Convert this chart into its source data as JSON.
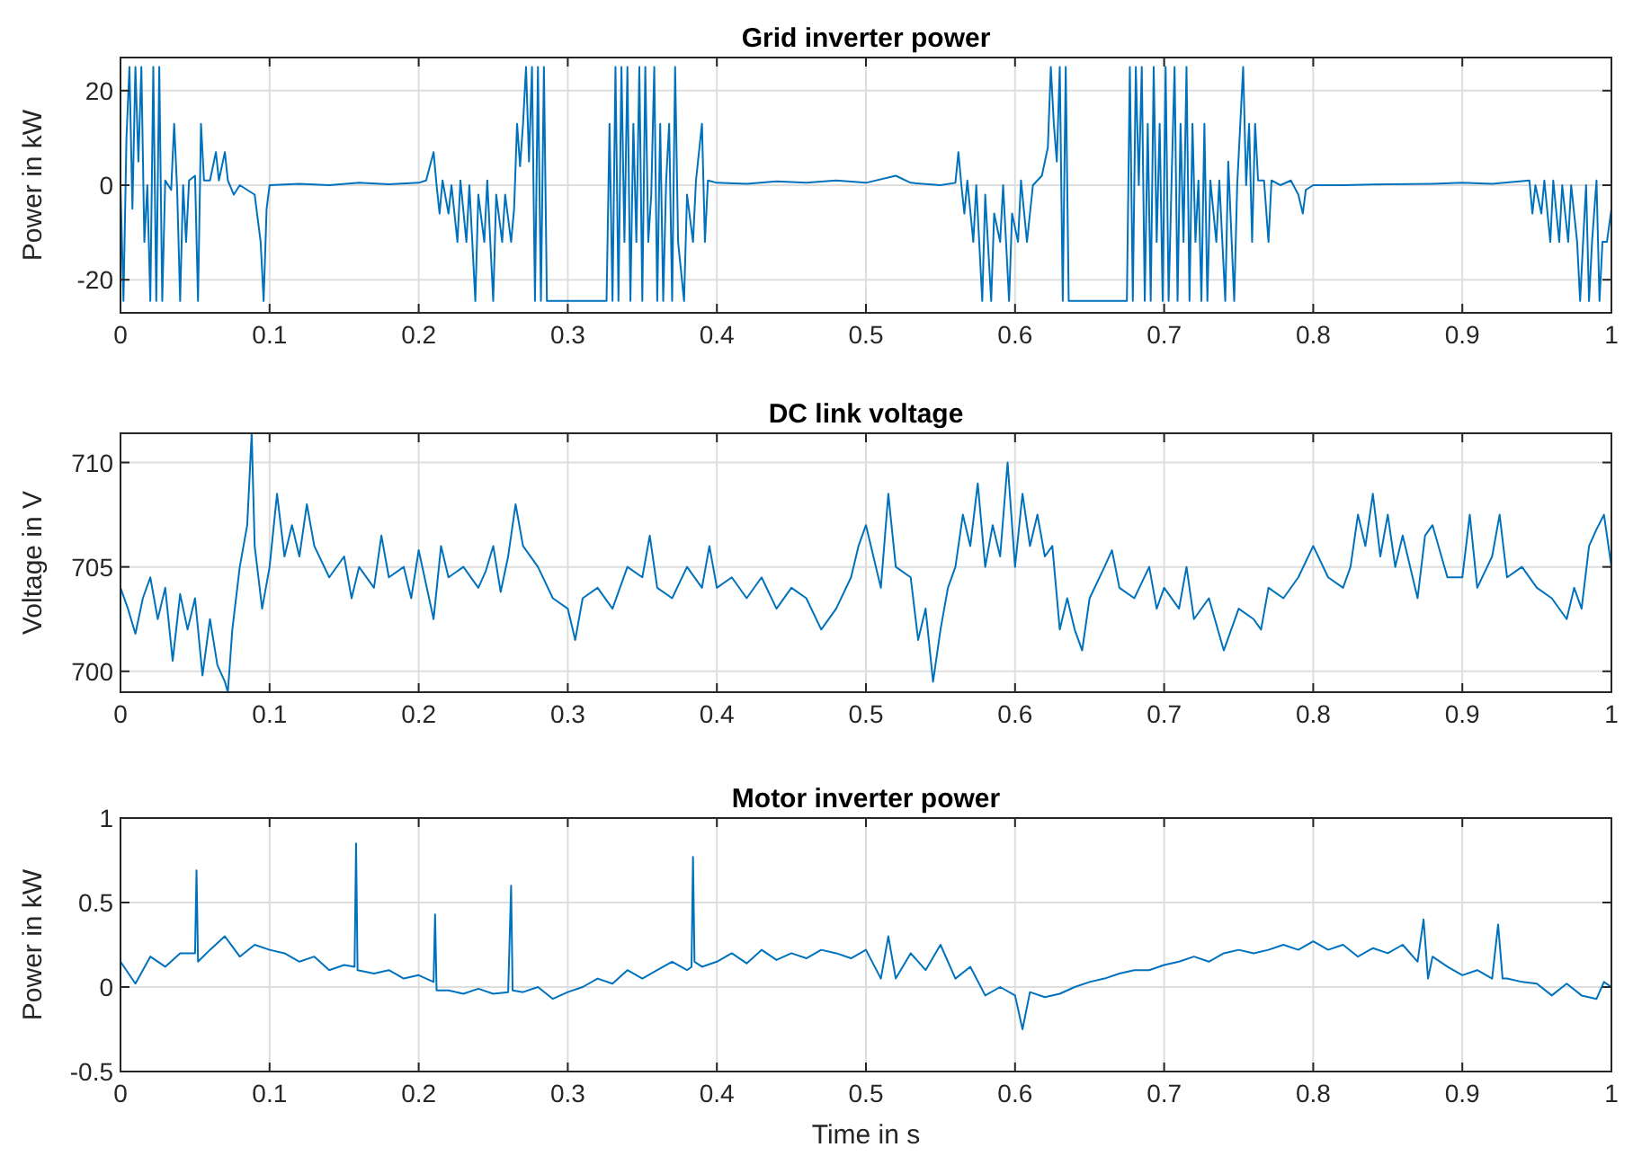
{
  "chart_data": [
    {
      "type": "line",
      "title": "Grid inverter power",
      "ylabel": "Power in kW",
      "xlim": [
        0,
        1
      ],
      "xticks": [
        0,
        0.1,
        0.2,
        0.3,
        0.4,
        0.5,
        0.6,
        0.7,
        0.8,
        0.9,
        1
      ],
      "ylim": [
        -27,
        27
      ],
      "yticks": [
        -20,
        0,
        20
      ],
      "grid": true,
      "series": [
        {
          "color": "#0072bd",
          "x": [
            0,
            0.002,
            0.004,
            0.006,
            0.008,
            0.01,
            0.012,
            0.014,
            0.016,
            0.018,
            0.02,
            0.022,
            0.024,
            0.026,
            0.028,
            0.03,
            0.034,
            0.036,
            0.038,
            0.04,
            0.042,
            0.044,
            0.046,
            0.05,
            0.052,
            0.054,
            0.056,
            0.06,
            0.064,
            0.066,
            0.07,
            0.072,
            0.076,
            0.08,
            0.085,
            0.09,
            0.094,
            0.096,
            0.098,
            0.1,
            0.12,
            0.14,
            0.16,
            0.18,
            0.2,
            0.205,
            0.21,
            0.212,
            0.214,
            0.216,
            0.22,
            0.222,
            0.226,
            0.228,
            0.232,
            0.234,
            0.238,
            0.24,
            0.244,
            0.246,
            0.25,
            0.252,
            0.256,
            0.258,
            0.262,
            0.264,
            0.266,
            0.268,
            0.27,
            0.272,
            0.274,
            0.276,
            0.278,
            0.28,
            0.282,
            0.284,
            0.286,
            0.3,
            0.32,
            0.326,
            0.328,
            0.33,
            0.332,
            0.334,
            0.336,
            0.338,
            0.34,
            0.342,
            0.344,
            0.346,
            0.348,
            0.35,
            0.352,
            0.354,
            0.356,
            0.358,
            0.36,
            0.362,
            0.364,
            0.366,
            0.368,
            0.37,
            0.372,
            0.374,
            0.378,
            0.38,
            0.384,
            0.386,
            0.39,
            0.392,
            0.394,
            0.4,
            0.42,
            0.44,
            0.46,
            0.48,
            0.5,
            0.52,
            0.53,
            0.55,
            0.56,
            0.562,
            0.564,
            0.566,
            0.568,
            0.572,
            0.574,
            0.578,
            0.58,
            0.584,
            0.586,
            0.59,
            0.592,
            0.596,
            0.598,
            0.602,
            0.604,
            0.608,
            0.612,
            0.618,
            0.622,
            0.624,
            0.626,
            0.628,
            0.63,
            0.632,
            0.634,
            0.636,
            0.64,
            0.66,
            0.675,
            0.677,
            0.679,
            0.681,
            0.683,
            0.685,
            0.687,
            0.689,
            0.691,
            0.693,
            0.695,
            0.697,
            0.699,
            0.701,
            0.703,
            0.705,
            0.707,
            0.709,
            0.711,
            0.713,
            0.715,
            0.717,
            0.719,
            0.721,
            0.723,
            0.725,
            0.727,
            0.729,
            0.731,
            0.735,
            0.737,
            0.741,
            0.743,
            0.747,
            0.749,
            0.753,
            0.755,
            0.757,
            0.759,
            0.761,
            0.763,
            0.767,
            0.77,
            0.772,
            0.778,
            0.785,
            0.79,
            0.793,
            0.795,
            0.8,
            0.82,
            0.85,
            0.88,
            0.9,
            0.92,
            0.945,
            0.947,
            0.949,
            0.953,
            0.955,
            0.959,
            0.961,
            0.965,
            0.967,
            0.971,
            0.973,
            0.977,
            0.979,
            0.981,
            0.983,
            0.985,
            0.987,
            0.99,
            0.992,
            0.994,
            0.997,
            1
          ],
          "values": [
            0,
            -24.5,
            10,
            25,
            -5,
            25,
            5,
            25,
            -12,
            0,
            -24.5,
            25,
            -24.5,
            25,
            -24.5,
            1,
            -1,
            13,
            -1,
            -24.5,
            0,
            -12,
            1,
            2,
            -24.5,
            13,
            1,
            1,
            7,
            1,
            7,
            1,
            -2,
            0,
            -1,
            -2,
            -12,
            -24.5,
            -5,
            0,
            0.3,
            0,
            0.5,
            0.2,
            0.5,
            1,
            7,
            0,
            -6,
            1,
            -6,
            0,
            -12,
            1,
            -12,
            0,
            -24.5,
            -2,
            -12,
            1,
            -24.5,
            -2,
            -12,
            -2,
            -12,
            -5,
            13,
            4,
            13,
            25,
            5,
            25,
            -24.5,
            25,
            -24.5,
            25,
            -24.5,
            -24.5,
            -24.5,
            -24.5,
            13,
            -24.5,
            25,
            -24.5,
            25,
            -12,
            25,
            -24.5,
            13,
            -12,
            25,
            -24.5,
            25,
            -12,
            -2,
            25,
            -24.5,
            13,
            -24.5,
            1,
            13,
            -24.5,
            25,
            -12,
            -24.5,
            -2,
            -12,
            1,
            13,
            -12,
            1,
            0.5,
            0.3,
            0.8,
            0.5,
            1,
            0.5,
            2,
            0.5,
            0,
            0.5,
            7,
            0,
            -6,
            1,
            -12,
            0,
            -24.5,
            -2,
            -24.5,
            -6,
            -12,
            0,
            -24.5,
            -6,
            -12,
            1,
            -12,
            0,
            2,
            8,
            25,
            13,
            5,
            25,
            -24.5,
            25,
            -24.5,
            -24.5,
            -24.5,
            -24.5,
            25,
            -24.5,
            25,
            0,
            25,
            -24.5,
            13,
            -24.5,
            25,
            -12,
            13,
            -24.5,
            25,
            -24.5,
            1,
            25,
            -24.5,
            13,
            -12,
            25,
            -24.5,
            13,
            -12,
            1,
            -24.5,
            13,
            -24.5,
            1,
            -12,
            1,
            -24.5,
            5,
            -24.5,
            0,
            25,
            0,
            13,
            -12,
            13,
            1,
            1,
            -12,
            1,
            0,
            1,
            -2,
            -6,
            -1,
            0,
            0,
            0.2,
            0.3,
            0.5,
            0.3,
            1,
            -6,
            0,
            -6,
            1,
            -12,
            1,
            -12,
            0,
            -12,
            0,
            -12,
            -24.5,
            -12,
            0,
            -24.5,
            -12,
            1,
            -24.5,
            -12,
            -12,
            -5
          ]
        }
      ]
    },
    {
      "type": "line",
      "title": "DC link voltage",
      "ylabel": "Voltage in V",
      "xlim": [
        0,
        1
      ],
      "xticks": [
        0,
        0.1,
        0.2,
        0.3,
        0.4,
        0.5,
        0.6,
        0.7,
        0.8,
        0.9,
        1
      ],
      "ylim": [
        699,
        711.4
      ],
      "yticks": [
        700,
        705,
        710
      ],
      "grid": true,
      "series": [
        {
          "color": "#0072bd",
          "x": [
            0,
            0.005,
            0.01,
            0.015,
            0.02,
            0.025,
            0.03,
            0.035,
            0.04,
            0.045,
            0.05,
            0.055,
            0.06,
            0.065,
            0.07,
            0.072,
            0.075,
            0.08,
            0.085,
            0.088,
            0.09,
            0.095,
            0.1,
            0.105,
            0.11,
            0.115,
            0.12,
            0.125,
            0.13,
            0.14,
            0.15,
            0.155,
            0.16,
            0.17,
            0.175,
            0.18,
            0.19,
            0.195,
            0.2,
            0.21,
            0.215,
            0.22,
            0.23,
            0.24,
            0.245,
            0.25,
            0.255,
            0.26,
            0.265,
            0.27,
            0.28,
            0.29,
            0.3,
            0.305,
            0.31,
            0.32,
            0.33,
            0.34,
            0.35,
            0.355,
            0.36,
            0.37,
            0.38,
            0.39,
            0.395,
            0.4,
            0.41,
            0.42,
            0.43,
            0.44,
            0.45,
            0.46,
            0.47,
            0.48,
            0.49,
            0.495,
            0.5,
            0.505,
            0.51,
            0.515,
            0.52,
            0.53,
            0.535,
            0.54,
            0.545,
            0.55,
            0.555,
            0.56,
            0.565,
            0.57,
            0.575,
            0.58,
            0.585,
            0.59,
            0.595,
            0.6,
            0.605,
            0.61,
            0.615,
            0.62,
            0.625,
            0.63,
            0.635,
            0.64,
            0.645,
            0.65,
            0.66,
            0.665,
            0.67,
            0.68,
            0.69,
            0.695,
            0.7,
            0.71,
            0.715,
            0.72,
            0.73,
            0.74,
            0.75,
            0.76,
            0.765,
            0.77,
            0.78,
            0.79,
            0.8,
            0.81,
            0.82,
            0.825,
            0.83,
            0.835,
            0.84,
            0.845,
            0.85,
            0.855,
            0.86,
            0.87,
            0.875,
            0.88,
            0.89,
            0.9,
            0.905,
            0.91,
            0.92,
            0.925,
            0.93,
            0.94,
            0.95,
            0.96,
            0.97,
            0.975,
            0.98,
            0.985,
            0.99,
            0.995,
            1
          ],
          "values": [
            704,
            703,
            701.8,
            703.5,
            704.5,
            702.5,
            704,
            700.5,
            703.7,
            702,
            703.5,
            699.8,
            702.5,
            700.3,
            699.5,
            699,
            702,
            705,
            707,
            711.4,
            706,
            703,
            705,
            708.5,
            705.5,
            707,
            705.5,
            708,
            706,
            704.5,
            705.5,
            703.5,
            705,
            704,
            706.5,
            704.5,
            705,
            703.5,
            705.8,
            702.5,
            706,
            704.5,
            705,
            704,
            704.8,
            706,
            703.8,
            705.5,
            708,
            706,
            705,
            703.5,
            703,
            701.5,
            703.5,
            704,
            703,
            705,
            704.5,
            706.5,
            704,
            703.5,
            705,
            704,
            706,
            704,
            704.5,
            703.5,
            704.5,
            703,
            704,
            703.5,
            702,
            703,
            704.5,
            706,
            707,
            705.5,
            704,
            708.5,
            705,
            704.5,
            701.5,
            703,
            699.5,
            702,
            704,
            705,
            707.5,
            706,
            709,
            705,
            707,
            705.5,
            710,
            705,
            708.5,
            706,
            707.5,
            705.5,
            706,
            702,
            703.5,
            702,
            701,
            703.5,
            705,
            705.8,
            704,
            703.5,
            705,
            703,
            704,
            703,
            705,
            702.5,
            703.5,
            701,
            703,
            702.5,
            702,
            704,
            703.5,
            704.5,
            706,
            704.5,
            704,
            705,
            707.5,
            706,
            708.5,
            705.5,
            707.5,
            705,
            706.5,
            703.5,
            706.5,
            707,
            704.5,
            704.5,
            707.5,
            704,
            705.5,
            707.5,
            704.5,
            705,
            704,
            703.5,
            702.5,
            704,
            703,
            706,
            706.8,
            707.5,
            705
          ]
        }
      ]
    },
    {
      "type": "line",
      "title": "Motor inverter power",
      "xlabel": "Time in s",
      "ylabel": "Power in kW",
      "xlim": [
        0,
        1
      ],
      "xticks": [
        0,
        0.1,
        0.2,
        0.3,
        0.4,
        0.5,
        0.6,
        0.7,
        0.8,
        0.9,
        1
      ],
      "ylim": [
        -0.5,
        1
      ],
      "yticks": [
        -0.5,
        0,
        0.5,
        1
      ],
      "grid": true,
      "series": [
        {
          "color": "#0072bd",
          "x": [
            0,
            0.01,
            0.02,
            0.03,
            0.04,
            0.05,
            0.051,
            0.052,
            0.06,
            0.07,
            0.08,
            0.09,
            0.1,
            0.11,
            0.12,
            0.13,
            0.14,
            0.15,
            0.157,
            0.158,
            0.159,
            0.17,
            0.18,
            0.19,
            0.2,
            0.21,
            0.211,
            0.212,
            0.22,
            0.23,
            0.24,
            0.25,
            0.26,
            0.262,
            0.263,
            0.27,
            0.28,
            0.29,
            0.3,
            0.31,
            0.32,
            0.33,
            0.34,
            0.35,
            0.36,
            0.37,
            0.38,
            0.383,
            0.384,
            0.385,
            0.39,
            0.4,
            0.41,
            0.42,
            0.43,
            0.44,
            0.45,
            0.46,
            0.47,
            0.48,
            0.49,
            0.5,
            0.51,
            0.515,
            0.52,
            0.53,
            0.54,
            0.55,
            0.56,
            0.57,
            0.58,
            0.59,
            0.6,
            0.605,
            0.61,
            0.62,
            0.63,
            0.64,
            0.65,
            0.66,
            0.67,
            0.68,
            0.69,
            0.7,
            0.71,
            0.72,
            0.73,
            0.74,
            0.75,
            0.76,
            0.77,
            0.78,
            0.79,
            0.8,
            0.81,
            0.82,
            0.83,
            0.84,
            0.85,
            0.86,
            0.87,
            0.874,
            0.877,
            0.88,
            0.89,
            0.9,
            0.91,
            0.92,
            0.924,
            0.927,
            0.93,
            0.94,
            0.95,
            0.96,
            0.97,
            0.98,
            0.99,
            0.995,
            1
          ],
          "values": [
            0.15,
            0.02,
            0.18,
            0.12,
            0.2,
            0.2,
            0.69,
            0.15,
            0.22,
            0.3,
            0.18,
            0.25,
            0.22,
            0.2,
            0.15,
            0.18,
            0.1,
            0.13,
            0.12,
            0.85,
            0.1,
            0.08,
            0.1,
            0.05,
            0.07,
            0.03,
            0.43,
            -0.02,
            -0.02,
            -0.04,
            -0.01,
            -0.04,
            -0.03,
            0.6,
            -0.02,
            -0.03,
            0,
            -0.07,
            -0.03,
            0,
            0.05,
            0.02,
            0.1,
            0.05,
            0.1,
            0.15,
            0.1,
            0.12,
            0.77,
            0.15,
            0.12,
            0.15,
            0.2,
            0.14,
            0.22,
            0.16,
            0.2,
            0.17,
            0.22,
            0.2,
            0.17,
            0.22,
            0.05,
            0.3,
            0.05,
            0.2,
            0.1,
            0.25,
            0.05,
            0.12,
            -0.05,
            0,
            -0.05,
            -0.25,
            -0.03,
            -0.06,
            -0.04,
            0,
            0.03,
            0.05,
            0.08,
            0.1,
            0.1,
            0.13,
            0.15,
            0.18,
            0.15,
            0.2,
            0.22,
            0.2,
            0.22,
            0.25,
            0.22,
            0.27,
            0.22,
            0.25,
            0.18,
            0.23,
            0.2,
            0.25,
            0.15,
            0.4,
            0.05,
            0.18,
            0.12,
            0.07,
            0.1,
            0.05,
            0.37,
            0.05,
            0.05,
            0.03,
            0.02,
            -0.05,
            0.02,
            -0.05,
            -0.07,
            0.03,
            0
          ]
        }
      ]
    }
  ]
}
